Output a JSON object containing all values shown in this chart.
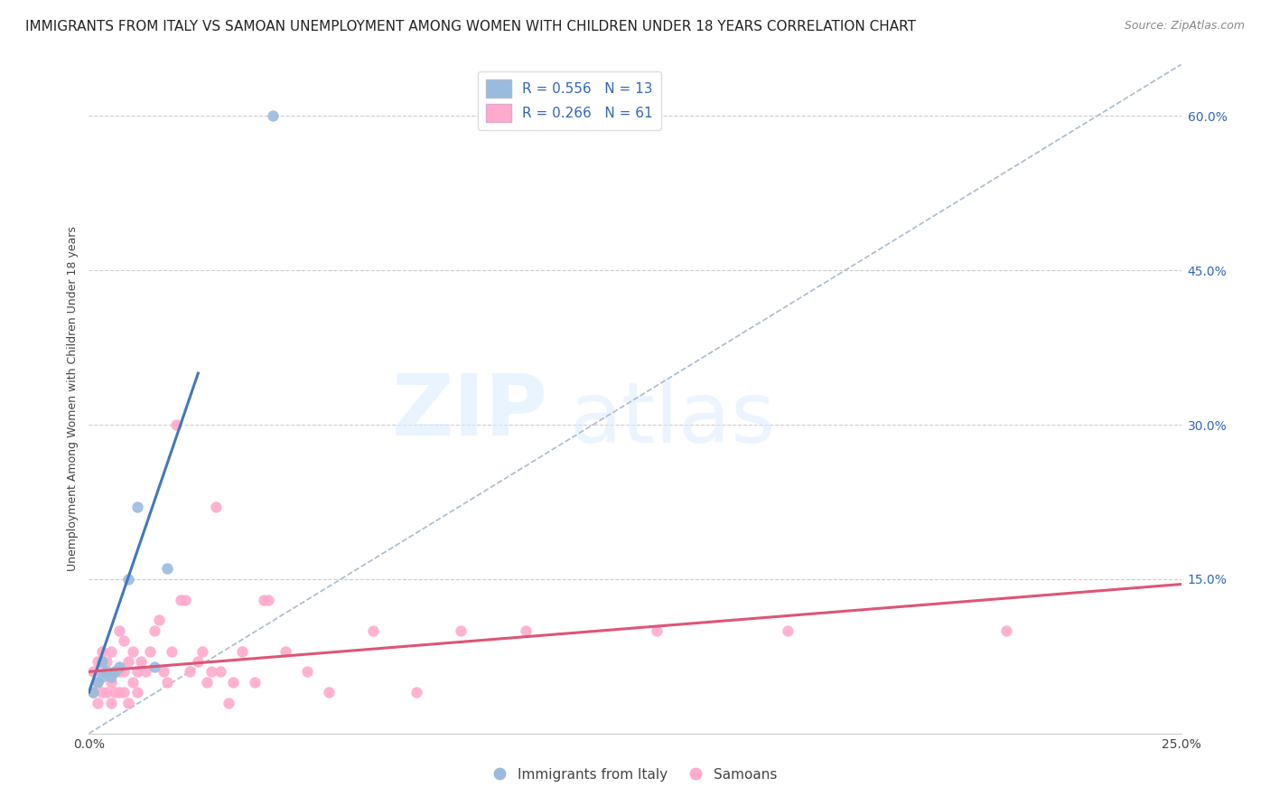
{
  "title": "IMMIGRANTS FROM ITALY VS SAMOAN UNEMPLOYMENT AMONG WOMEN WITH CHILDREN UNDER 18 YEARS CORRELATION CHART",
  "source": "Source: ZipAtlas.com",
  "ylabel": "Unemployment Among Women with Children Under 18 years",
  "xlim": [
    0,
    0.25
  ],
  "ylim": [
    0,
    0.65
  ],
  "legend_blue_label": "R = 0.556   N = 13",
  "legend_pink_label": "R = 0.266   N = 61",
  "scatter_blue_x": [
    0.001,
    0.002,
    0.003,
    0.003,
    0.004,
    0.005,
    0.006,
    0.007,
    0.009,
    0.011,
    0.015,
    0.018,
    0.042
  ],
  "scatter_blue_y": [
    0.04,
    0.05,
    0.055,
    0.07,
    0.06,
    0.055,
    0.06,
    0.065,
    0.15,
    0.22,
    0.065,
    0.16,
    0.6
  ],
  "scatter_pink_x": [
    0.001,
    0.001,
    0.002,
    0.002,
    0.002,
    0.003,
    0.003,
    0.003,
    0.004,
    0.004,
    0.005,
    0.005,
    0.005,
    0.006,
    0.006,
    0.007,
    0.007,
    0.007,
    0.008,
    0.008,
    0.008,
    0.009,
    0.009,
    0.01,
    0.01,
    0.011,
    0.011,
    0.012,
    0.013,
    0.014,
    0.015,
    0.016,
    0.017,
    0.018,
    0.019,
    0.02,
    0.021,
    0.022,
    0.023,
    0.025,
    0.026,
    0.027,
    0.028,
    0.029,
    0.03,
    0.032,
    0.033,
    0.035,
    0.038,
    0.04,
    0.041,
    0.045,
    0.05,
    0.055,
    0.065,
    0.075,
    0.085,
    0.1,
    0.13,
    0.16,
    0.21
  ],
  "scatter_pink_y": [
    0.04,
    0.06,
    0.03,
    0.05,
    0.07,
    0.04,
    0.06,
    0.08,
    0.04,
    0.07,
    0.03,
    0.05,
    0.08,
    0.04,
    0.06,
    0.04,
    0.06,
    0.1,
    0.04,
    0.06,
    0.09,
    0.03,
    0.07,
    0.05,
    0.08,
    0.04,
    0.06,
    0.07,
    0.06,
    0.08,
    0.1,
    0.11,
    0.06,
    0.05,
    0.08,
    0.3,
    0.13,
    0.13,
    0.06,
    0.07,
    0.08,
    0.05,
    0.06,
    0.22,
    0.06,
    0.03,
    0.05,
    0.08,
    0.05,
    0.13,
    0.13,
    0.08,
    0.06,
    0.04,
    0.1,
    0.04,
    0.1,
    0.1,
    0.1,
    0.1,
    0.1
  ],
  "blue_line_x": [
    0.0,
    0.025
  ],
  "blue_line_y": [
    0.04,
    0.35
  ],
  "pink_line_x": [
    0.0,
    0.25
  ],
  "pink_line_y": [
    0.06,
    0.145
  ],
  "dashed_line_x": [
    0.0,
    0.25
  ],
  "dashed_line_y": [
    0.0,
    0.65
  ],
  "blue_color": "#99BBDD",
  "pink_color": "#FFAACC",
  "blue_line_color": "#4477BB",
  "pink_line_color": "#DD5577",
  "dashed_line_color": "#AABBCC",
  "title_fontsize": 11,
  "axis_label_fontsize": 9,
  "tick_fontsize": 10,
  "legend_entries_blue": "Immigrants from Italy",
  "legend_entries_pink": "Samoans"
}
